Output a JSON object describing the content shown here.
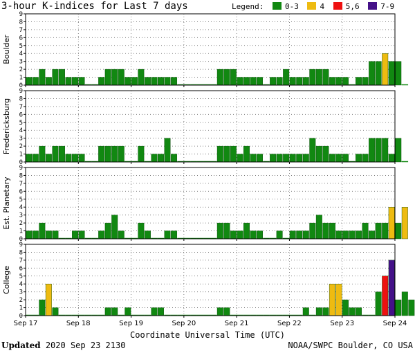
{
  "title": "3-hour K-indices for Last 7 days",
  "legend": {
    "label": "Legend:",
    "items": [
      {
        "label": "0-3",
        "color": "#118811"
      },
      {
        "label": "4",
        "color": "#eebb11"
      },
      {
        "label": "5,6",
        "color": "#ee1111"
      },
      {
        "label": "7-9",
        "color": "#441188"
      }
    ]
  },
  "footer": {
    "updated_label": "Updated",
    "updated_value": "2020 Sep 23 2130",
    "credit": "NOAA/SWPC Boulder, CO USA"
  },
  "chart_data": {
    "type": "bar",
    "xlabel": "Coordinate Universal Time (UTC)",
    "x_ticks": [
      "Sep 17",
      "Sep 18",
      "Sep 19",
      "Sep 20",
      "Sep 21",
      "Sep 22",
      "Sep 23",
      "Sep 24"
    ],
    "ylim": [
      0,
      9
    ],
    "y_ticks": [
      0,
      1,
      2,
      3,
      4,
      5,
      6,
      7,
      8,
      9
    ],
    "grid": true,
    "interval_hours": 3,
    "panels": [
      {
        "ylabel": "Boulder",
        "values": [
          1,
          1,
          2,
          1,
          2,
          2,
          1,
          1,
          1,
          0,
          0,
          1,
          2,
          2,
          2,
          1,
          1,
          2,
          1,
          1,
          1,
          1,
          1,
          0,
          0,
          0,
          0,
          0,
          0,
          2,
          2,
          2,
          1,
          1,
          1,
          1,
          0,
          1,
          1,
          2,
          1,
          1,
          1,
          2,
          2,
          2,
          1,
          1,
          1,
          0,
          1,
          1,
          3,
          3,
          4,
          3,
          3,
          0
        ]
      },
      {
        "ylabel": "Fredericksburg",
        "values": [
          1,
          1,
          2,
          1,
          2,
          2,
          1,
          1,
          1,
          0,
          0,
          2,
          2,
          2,
          2,
          0,
          0,
          2,
          0,
          1,
          1,
          3,
          1,
          0,
          0,
          0,
          0,
          0,
          0,
          2,
          2,
          2,
          1,
          2,
          1,
          1,
          0,
          1,
          1,
          1,
          1,
          1,
          1,
          3,
          2,
          2,
          1,
          1,
          1,
          0,
          1,
          1,
          3,
          3,
          3,
          1,
          3,
          0
        ]
      },
      {
        "ylabel": "Est. Planetary",
        "values": [
          1,
          1,
          2,
          1,
          1,
          0,
          0,
          1,
          1,
          0,
          0,
          1,
          2,
          3,
          1,
          0,
          0,
          2,
          1,
          0,
          0,
          1,
          1,
          0,
          0,
          0,
          0,
          0,
          0,
          2,
          2,
          1,
          1,
          2,
          1,
          1,
          0,
          0,
          1,
          0,
          1,
          1,
          1,
          2,
          3,
          2,
          2,
          1,
          1,
          1,
          1,
          2,
          1,
          2,
          2,
          4,
          2,
          4
        ]
      },
      {
        "ylabel": "College",
        "values": [
          0,
          0,
          2,
          4,
          1,
          0,
          0,
          0,
          0,
          0,
          0,
          0,
          1,
          1,
          0,
          1,
          0,
          0,
          0,
          1,
          1,
          0,
          0,
          0,
          0,
          0,
          0,
          0,
          0,
          1,
          1,
          0,
          0,
          0,
          0,
          0,
          0,
          0,
          0,
          0,
          0,
          0,
          1,
          0,
          1,
          1,
          4,
          4,
          2,
          1,
          1,
          0,
          0,
          3,
          5,
          7,
          2,
          3,
          2
        ]
      }
    ]
  }
}
